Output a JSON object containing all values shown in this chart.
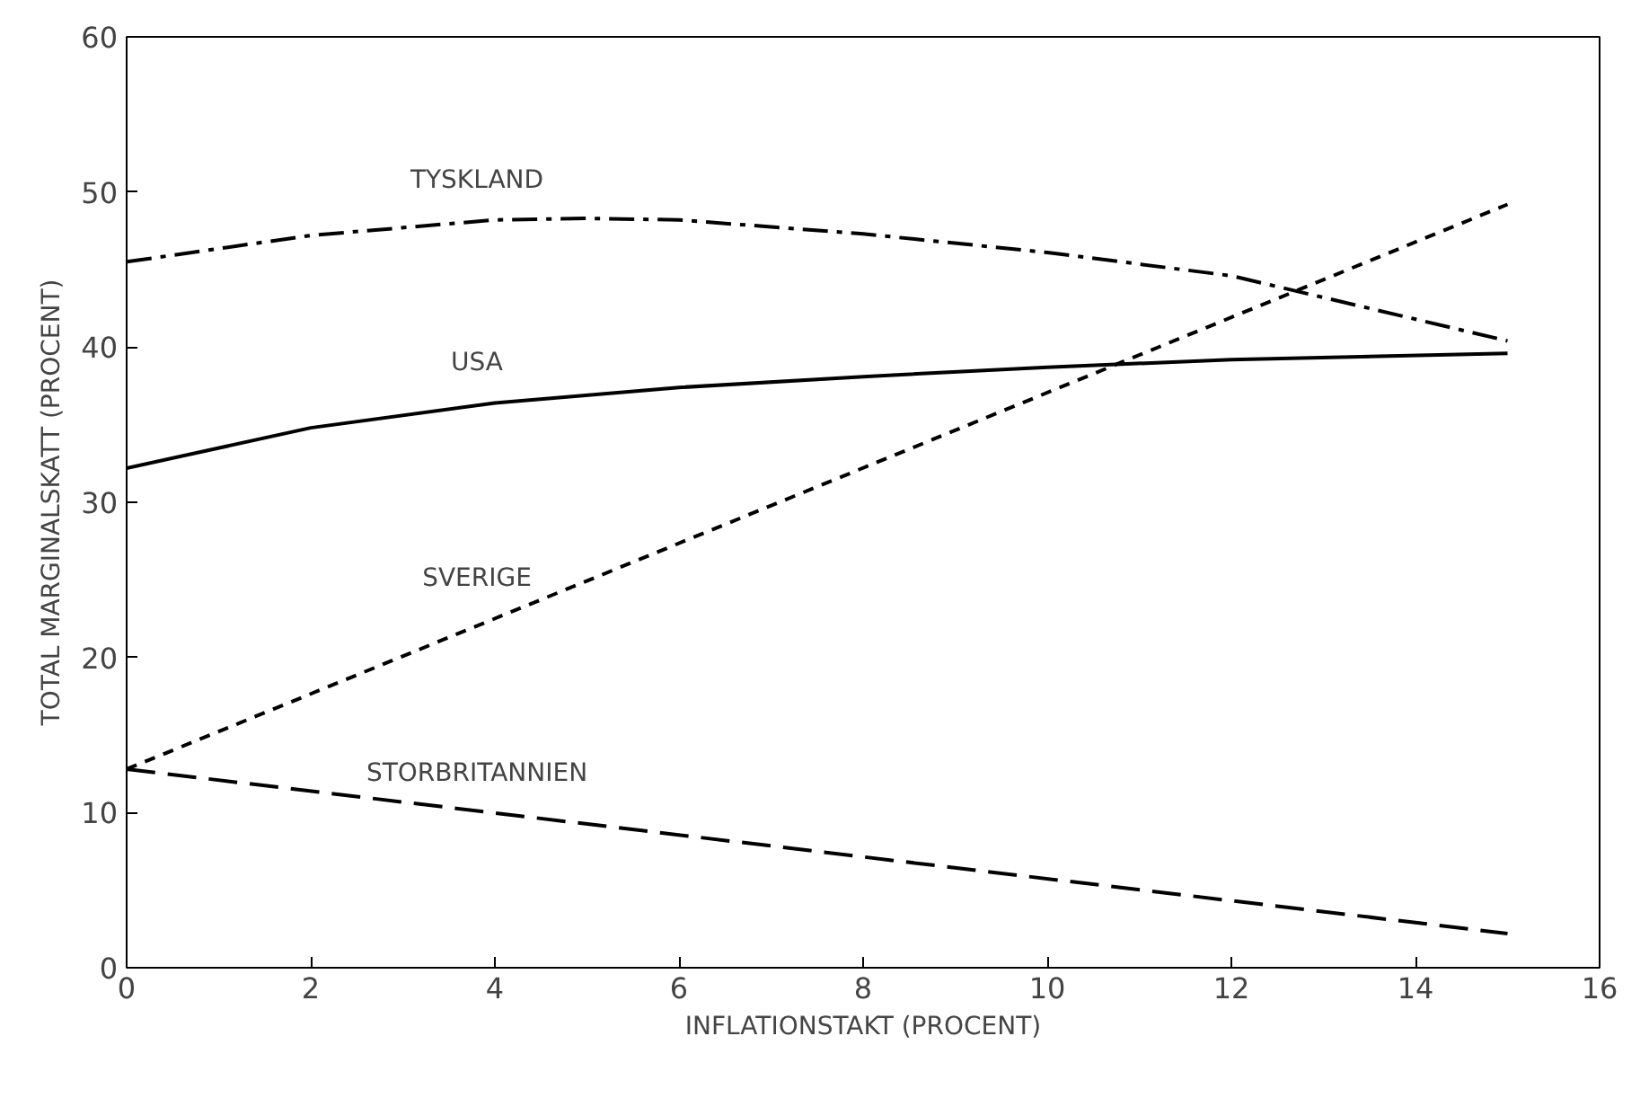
{
  "chart_data": {
    "type": "line",
    "xlabel": "INFLATIONSTAKT (PROCENT)",
    "ylabel": "TOTAL MARGINALSKATT (PROCENT)",
    "xlim": [
      0,
      16
    ],
    "ylim": [
      0,
      60
    ],
    "xticks": [
      0,
      2,
      4,
      6,
      8,
      10,
      12,
      14,
      16
    ],
    "yticks": [
      0,
      10,
      20,
      30,
      40,
      50,
      60
    ],
    "grid": false,
    "series": [
      {
        "name": "TYSKLAND",
        "color": "#000000",
        "line_style": "dashdot",
        "x": [
          0,
          2,
          4,
          5,
          6,
          8,
          10,
          12,
          15
        ],
        "values": [
          45.5,
          47.2,
          48.2,
          48.3,
          48.2,
          47.3,
          46.1,
          44.6,
          40.4
        ]
      },
      {
        "name": "USA",
        "color": "#000000",
        "line_style": "solid",
        "x": [
          0,
          2,
          4,
          6,
          8,
          10,
          12,
          15
        ],
        "values": [
          32.2,
          34.8,
          36.4,
          37.4,
          38.1,
          38.7,
          39.2,
          39.6
        ]
      },
      {
        "name": "SVERIGE",
        "color": "#000000",
        "line_style": "dashed",
        "x": [
          0,
          15
        ],
        "values": [
          12.8,
          49.2
        ]
      },
      {
        "name": "STORBRITANNIEN",
        "color": "#000000",
        "line_style": "longdash",
        "x": [
          0,
          15
        ],
        "values": [
          12.8,
          2.2
        ]
      }
    ]
  }
}
